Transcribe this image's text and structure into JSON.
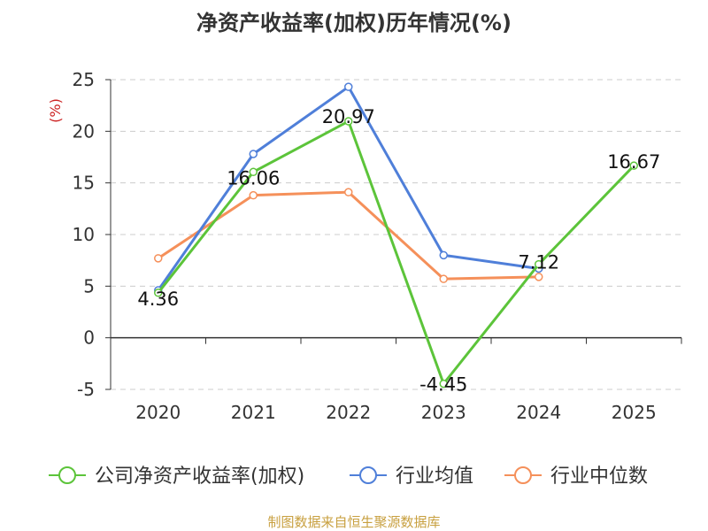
{
  "title": "净资产收益率(加权)历年情况(%)",
  "source": "制图数据来自恒生聚源数据库",
  "chart_data": {
    "type": "line",
    "title": "净资产收益率(加权)历年情况(%)",
    "ylabel": "(%)",
    "categories": [
      "2020",
      "2021",
      "2022",
      "2023",
      "2024",
      "2025"
    ],
    "ylim": [
      -5,
      25
    ],
    "yticks": [
      -5,
      0,
      5,
      10,
      15,
      20,
      25
    ],
    "grid": true,
    "legend_position": "bottom",
    "series": [
      {
        "name": "公司净资产收益率(加权)",
        "color": "#5cc43a",
        "values": [
          4.36,
          16.06,
          20.97,
          -4.45,
          7.12,
          16.67
        ],
        "labels": [
          "4.36",
          "16.06",
          "20.97",
          "-4.45",
          "7.12",
          "16.67"
        ]
      },
      {
        "name": "行业均值",
        "color": "#4f7fd9",
        "values": [
          4.6,
          17.8,
          24.3,
          8.0,
          6.7,
          null
        ]
      },
      {
        "name": "行业中位数",
        "color": "#f5905a",
        "values": [
          7.7,
          13.8,
          14.1,
          5.7,
          5.9,
          null
        ]
      }
    ]
  }
}
